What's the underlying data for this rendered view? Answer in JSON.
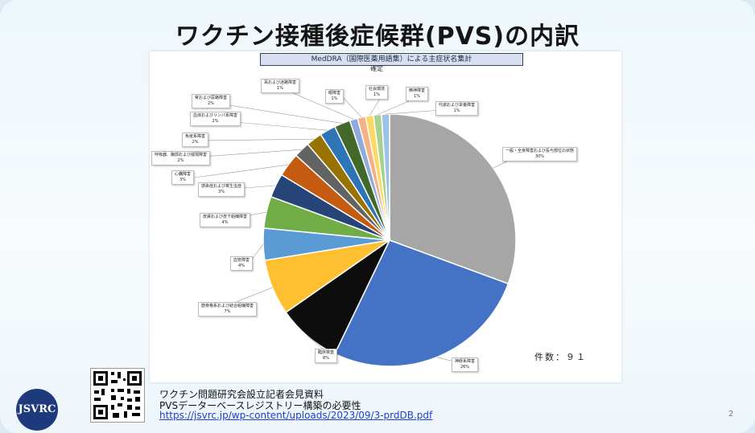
{
  "title": "ワクチン接種後症候群(PVS)の内訳",
  "chart_data": {
    "type": "pie",
    "caption": "MedDRA（国際医薬用語集）による主症状名集計",
    "subtitle": "確定",
    "n_label": "件数：９１",
    "slices": [
      {
        "label": "一般・全身障害および投与部位の状態",
        "percent_label": "30%",
        "value": 30,
        "color": "#a6a6a6"
      },
      {
        "label": "神経系障害",
        "percent_label": "26%",
        "value": 26,
        "color": "#4472c4"
      },
      {
        "label": "臨床検査",
        "percent_label": "8%",
        "value": 8,
        "color": "#0d0d0d"
      },
      {
        "label": "筋骨格系および結合組織障害",
        "percent_label": "7%",
        "value": 7,
        "color": "#fec031"
      },
      {
        "label": "血管障害",
        "percent_label": "4%",
        "value": 4,
        "color": "#5b9bd5"
      },
      {
        "label": "皮膚および皮下組織障害",
        "percent_label": "4%",
        "value": 4,
        "color": "#70ad47"
      },
      {
        "label": "感染症および寄生虫症",
        "percent_label": "3%",
        "value": 3,
        "color": "#264478"
      },
      {
        "label": "心臓障害",
        "percent_label": "3%",
        "value": 3,
        "color": "#c55a11"
      },
      {
        "label": "呼吸器、胸郭および縦隔障害",
        "percent_label": "2%",
        "value": 2,
        "color": "#636363"
      },
      {
        "label": "免疫系障害",
        "percent_label": "2%",
        "value": 2,
        "color": "#997300"
      },
      {
        "label": "血液およびリンパ系障害",
        "percent_label": "2%",
        "value": 2,
        "color": "#2e75b6"
      },
      {
        "label": "腎および尿路障害",
        "percent_label": "2%",
        "value": 2,
        "color": "#43682b"
      },
      {
        "label": "耳および迷路障害",
        "percent_label": "1%",
        "value": 1,
        "color": "#8faadc"
      },
      {
        "label": "眼障害",
        "percent_label": "1%",
        "value": 1,
        "color": "#f4b183"
      },
      {
        "label": "社会環境",
        "percent_label": "1%",
        "value": 1,
        "color": "#ffd966"
      },
      {
        "label": "精神障害",
        "percent_label": "1%",
        "value": 1,
        "color": "#a9d18e"
      },
      {
        "label": "代謝および栄養障害",
        "percent_label": "1%",
        "value": 1,
        "color": "#9dc3e6"
      }
    ]
  },
  "source": {
    "line1": "ワクチン問題研究会設立記者会見資料",
    "line2": "PVSデーターベースレジストリー構築の必要性",
    "link": "https://jsvrc.jp/wp-content/uploads/2023/09/3-prdDB.pdf"
  },
  "logo_text": "JSVRC",
  "page_number": "2"
}
